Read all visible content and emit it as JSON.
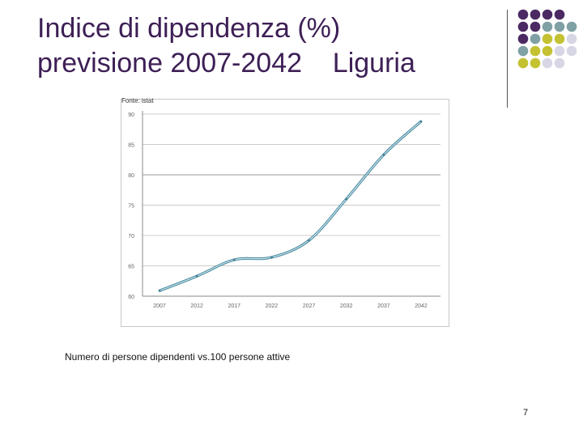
{
  "slide": {
    "title_line1": "Indice di dipendenza (%)",
    "title_line2": "previsione 2007-2042    Liguria",
    "source": "Fonte: istat",
    "caption": "Numero di persone dipendenti vs.100 persone attive",
    "page_number": "7"
  },
  "colors": {
    "title": "#3d1f55",
    "dot_purple": "#4b2a63",
    "dot_teal": "#7fa0a4",
    "dot_yellow": "#c4c232",
    "dot_lavender": "#d7d6e4",
    "line": "#7fb0c4",
    "grid": "#999999"
  },
  "decor_dots": [
    [
      "purple",
      "purple",
      "purple",
      "purple"
    ],
    [
      "purple",
      "purple",
      "teal",
      "teal",
      "teal"
    ],
    [
      "purple",
      "teal",
      "yellow",
      "yellow",
      "lavender"
    ],
    [
      "teal",
      "yellow",
      "yellow",
      "lavender",
      "lavender"
    ],
    [
      "yellow",
      "yellow",
      "lavender",
      "lavender"
    ]
  ],
  "chart_data": {
    "type": "line",
    "categories": [
      "2007",
      "2012",
      "2017",
      "2022",
      "2027",
      "2032",
      "2037",
      "2042"
    ],
    "series": [
      {
        "values": [
          60.9,
          63.3,
          66.0,
          66.4,
          69.2,
          76.0,
          83.3,
          88.8
        ]
      }
    ],
    "yticks": [
      "60",
      "65",
      "70",
      "75",
      "80",
      "85",
      "90"
    ],
    "ylim": [
      60,
      90
    ],
    "grid": true,
    "legend": "none"
  }
}
